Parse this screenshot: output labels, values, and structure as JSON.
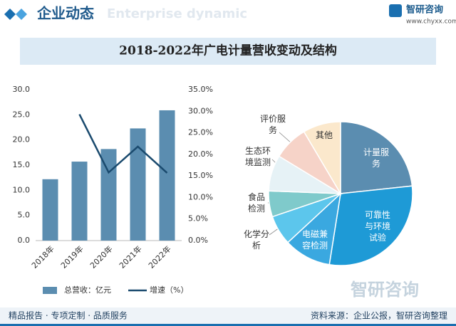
{
  "header": {
    "title": "企业动态",
    "subtitle": "Enterprise dynamic",
    "logo": "智研咨询",
    "url": "www.chyxx.com"
  },
  "title": "2018-2022年广电计量营收变动及结构",
  "chart_data": [
    {
      "type": "bar",
      "categories": [
        "2018年",
        "2019年",
        "2020年",
        "2021年",
        "2022年"
      ],
      "series": [
        {
          "name": "总营收：亿元",
          "type": "bar",
          "color": "#5b8db0",
          "values": [
            12.2,
            15.7,
            18.2,
            22.3,
            25.9
          ]
        },
        {
          "name": "增速（%）",
          "type": "line",
          "axis": "y2",
          "color": "#1a4a6e",
          "values": [
            null,
            29.3,
            15.8,
            21.8,
            15.7
          ]
        }
      ],
      "ylim": [
        0,
        30
      ],
      "yticks": [
        {
          "value": 0,
          "label": "0.0"
        },
        {
          "value": 5,
          "label": "5.0"
        },
        {
          "value": 10,
          "label": "10.0"
        },
        {
          "value": 15,
          "label": "15.0"
        },
        {
          "value": 20,
          "label": "20.0"
        },
        {
          "value": 25,
          "label": "25.0"
        },
        {
          "value": 30,
          "label": "30.0"
        }
      ],
      "y2lim": [
        0,
        35
      ],
      "y2ticks": [
        {
          "value": 0,
          "label": "0.0%"
        },
        {
          "value": 5,
          "label": "5.0%"
        },
        {
          "value": 10,
          "label": "10.0%"
        },
        {
          "value": 15,
          "label": "15.0%"
        },
        {
          "value": 20,
          "label": "20.0%"
        },
        {
          "value": 25,
          "label": "25.0%"
        },
        {
          "value": 30,
          "label": "30.0%"
        },
        {
          "value": 35,
          "label": "35.0%"
        }
      ],
      "legend": "bottom"
    },
    {
      "type": "pie",
      "categories": [
        "计量服务",
        "可靠性与环境试验",
        "电磁兼容检测",
        "化学分析",
        "食品检测",
        "生态环境监测",
        "评价服务",
        "其他"
      ],
      "values": [
        23.3,
        29.2,
        10.6,
        6.7,
        5.8,
        8.1,
        7.8,
        8.5
      ],
      "colors": [
        "#5b8db0",
        "#1e9ad6",
        "#3aa8e0",
        "#5cc6ec",
        "#7fcacb",
        "#e6f2f6",
        "#f6d3c8",
        "#fbe8cc"
      ]
    }
  ],
  "footer": {
    "left": "精品报告 · 专项定制 · 品质服务",
    "right": "资料来源：企业公报，智研咨询整理"
  }
}
